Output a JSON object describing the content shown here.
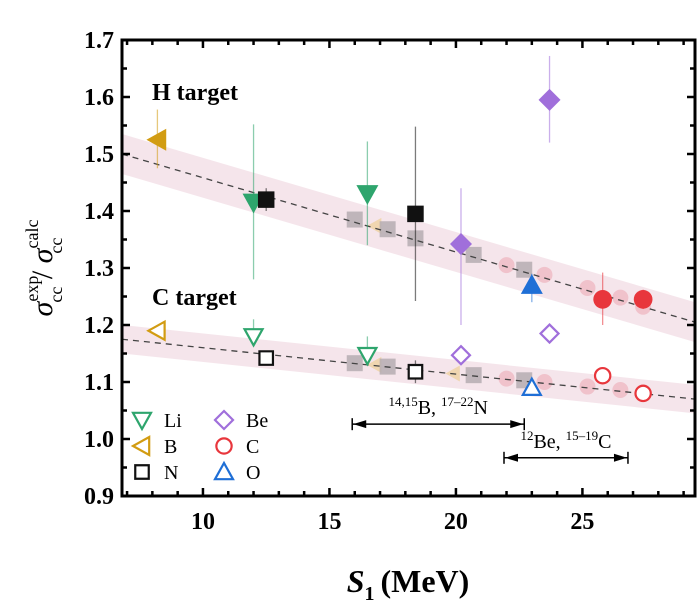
{
  "chart_data": {
    "type": "scatter",
    "xlabel": "S",
    "xlabel_sub": "1",
    "xlabel_unit": "(MeV)",
    "ylabel": {
      "sigma": "σ",
      "sup1": "exp",
      "sub1": "cc",
      "slash": " / ",
      "sup2": "calc",
      "sub2": "cc"
    },
    "xlim": [
      6.8,
      29.45
    ],
    "ylim": [
      0.9,
      1.7
    ],
    "xticks": [
      10,
      15,
      20,
      25
    ],
    "yticks": [
      0.9,
      1.0,
      1.1,
      1.2,
      1.3,
      1.4,
      1.5,
      1.6,
      1.7
    ],
    "grid": false,
    "texts": {
      "h_target": "H target",
      "c_target": "C target"
    },
    "colors": {
      "Li": "#2ea56d",
      "B": "#d29c12",
      "N": "#111111",
      "Be": "#a06fdb",
      "C": "#e8363c",
      "O": "#1f6fd6",
      "band": "#f3dfe6",
      "calc_square": "#b5adb2",
      "calc_circle": "#efb9c3",
      "calc_triangle": "#f0d6b0"
    },
    "legend": {
      "placement": "bottom-left",
      "entries": [
        {
          "label": "Li",
          "marker": "triangle-down"
        },
        {
          "label": "Be",
          "marker": "diamond"
        },
        {
          "label": "B",
          "marker": "triangle-left"
        },
        {
          "label": "C",
          "marker": "circle"
        },
        {
          "label": "N",
          "marker": "square"
        },
        {
          "label": "O",
          "marker": "triangle-up"
        }
      ]
    },
    "fits": [
      {
        "target": "H",
        "x": [
          6.8,
          29.45
        ],
        "y": [
          1.5,
          1.205
        ],
        "band_halfwidth": 0.035
      },
      {
        "target": "C",
        "x": [
          6.8,
          29.45
        ],
        "y": [
          1.175,
          1.07
        ],
        "band_halfwidth": 0.025
      }
    ],
    "series": [
      {
        "target": "H",
        "filled": true,
        "points": [
          {
            "el": "B",
            "x": 8.2,
            "y": 1.525,
            "lo": 1.475,
            "hi": 1.578
          },
          {
            "el": "Li",
            "x": 12.0,
            "y": 1.415,
            "lo": 1.28,
            "hi": 1.552
          },
          {
            "el": "N",
            "x": 12.5,
            "y": 1.42,
            "lo": 1.4,
            "hi": 1.44
          },
          {
            "el": "Li",
            "x": 16.5,
            "y": 1.43,
            "lo": 1.34,
            "hi": 1.522
          },
          {
            "el": "N",
            "x": 18.4,
            "y": 1.395,
            "lo": 1.242,
            "hi": 1.548
          },
          {
            "el": "Be",
            "x": 20.2,
            "y": 1.342,
            "lo": 1.2,
            "hi": 1.44
          },
          {
            "el": "Be",
            "x": 23.7,
            "y": 1.595,
            "lo": 1.52,
            "hi": 1.672
          },
          {
            "el": "O",
            "x": 23.0,
            "y": 1.27,
            "lo": 1.24,
            "hi": 1.29
          },
          {
            "el": "C",
            "x": 25.8,
            "y": 1.245,
            "lo": 1.2,
            "hi": 1.292
          },
          {
            "el": "C",
            "x": 27.4,
            "y": 1.245,
            "lo": 1.228,
            "hi": 1.262
          }
        ]
      },
      {
        "target": "C",
        "filled": false,
        "points": [
          {
            "el": "B",
            "x": 8.2,
            "y": 1.19,
            "lo": 1.19,
            "hi": 1.19
          },
          {
            "el": "Li",
            "x": 12.0,
            "y": 1.18,
            "lo": 1.17,
            "hi": 1.21
          },
          {
            "el": "N",
            "x": 12.5,
            "y": 1.142,
            "lo": 1.142,
            "hi": 1.142
          },
          {
            "el": "Li",
            "x": 16.5,
            "y": 1.147,
            "lo": 1.135,
            "hi": 1.18
          },
          {
            "el": "N",
            "x": 18.4,
            "y": 1.118,
            "lo": 1.098,
            "hi": 1.138
          },
          {
            "el": "Be",
            "x": 20.2,
            "y": 1.147,
            "lo": 1.147,
            "hi": 1.147
          },
          {
            "el": "Be",
            "x": 23.7,
            "y": 1.185,
            "lo": 1.185,
            "hi": 1.185
          },
          {
            "el": "O",
            "x": 23.0,
            "y": 1.09,
            "lo": 1.09,
            "hi": 1.09
          },
          {
            "el": "C",
            "x": 25.8,
            "y": 1.111,
            "lo": 1.111,
            "hi": 1.111
          },
          {
            "el": "C",
            "x": 27.4,
            "y": 1.08,
            "lo": 1.08,
            "hi": 1.08
          }
        ]
      }
    ],
    "calc_points": [
      {
        "target": "H",
        "kind": "square",
        "x": 16.0,
        "y": 1.385
      },
      {
        "target": "H",
        "kind": "triangle",
        "x": 16.8,
        "y": 1.374
      },
      {
        "target": "H",
        "kind": "square",
        "x": 17.3,
        "y": 1.368
      },
      {
        "target": "H",
        "kind": "square",
        "x": 18.4,
        "y": 1.352
      },
      {
        "target": "H",
        "kind": "square",
        "x": 20.7,
        "y": 1.323
      },
      {
        "target": "H",
        "kind": "circle",
        "x": 22.0,
        "y": 1.305
      },
      {
        "target": "H",
        "kind": "square",
        "x": 22.7,
        "y": 1.297
      },
      {
        "target": "H",
        "kind": "circle",
        "x": 23.5,
        "y": 1.288
      },
      {
        "target": "H",
        "kind": "circle",
        "x": 25.2,
        "y": 1.265
      },
      {
        "target": "H",
        "kind": "circle",
        "x": 26.5,
        "y": 1.248
      },
      {
        "target": "H",
        "kind": "circle",
        "x": 27.4,
        "y": 1.232
      },
      {
        "target": "C",
        "kind": "square",
        "x": 16.0,
        "y": 1.133
      },
      {
        "target": "C",
        "kind": "triangle",
        "x": 16.8,
        "y": 1.13
      },
      {
        "target": "C",
        "kind": "square",
        "x": 17.3,
        "y": 1.127
      },
      {
        "target": "C",
        "kind": "triangle",
        "x": 19.9,
        "y": 1.115
      },
      {
        "target": "C",
        "kind": "square",
        "x": 20.7,
        "y": 1.112
      },
      {
        "target": "C",
        "kind": "circle",
        "x": 22.0,
        "y": 1.106
      },
      {
        "target": "C",
        "kind": "square",
        "x": 22.7,
        "y": 1.103
      },
      {
        "target": "C",
        "kind": "circle",
        "x": 23.5,
        "y": 1.1
      },
      {
        "target": "C",
        "kind": "circle",
        "x": 25.2,
        "y": 1.092
      },
      {
        "target": "C",
        "kind": "circle",
        "x": 26.5,
        "y": 1.086
      },
      {
        "target": "C",
        "kind": "circle",
        "x": 27.4,
        "y": 1.082
      }
    ],
    "annotations": [
      {
        "x_from": 15.9,
        "x_to": 22.7,
        "y": 1.026,
        "label_parts": [
          "14,15",
          "B, ",
          "17–22",
          "N"
        ]
      },
      {
        "x_from": 21.9,
        "x_to": 26.8,
        "y": 0.967,
        "label_parts": [
          "12",
          "Be, ",
          "15–19",
          "C"
        ]
      }
    ]
  }
}
